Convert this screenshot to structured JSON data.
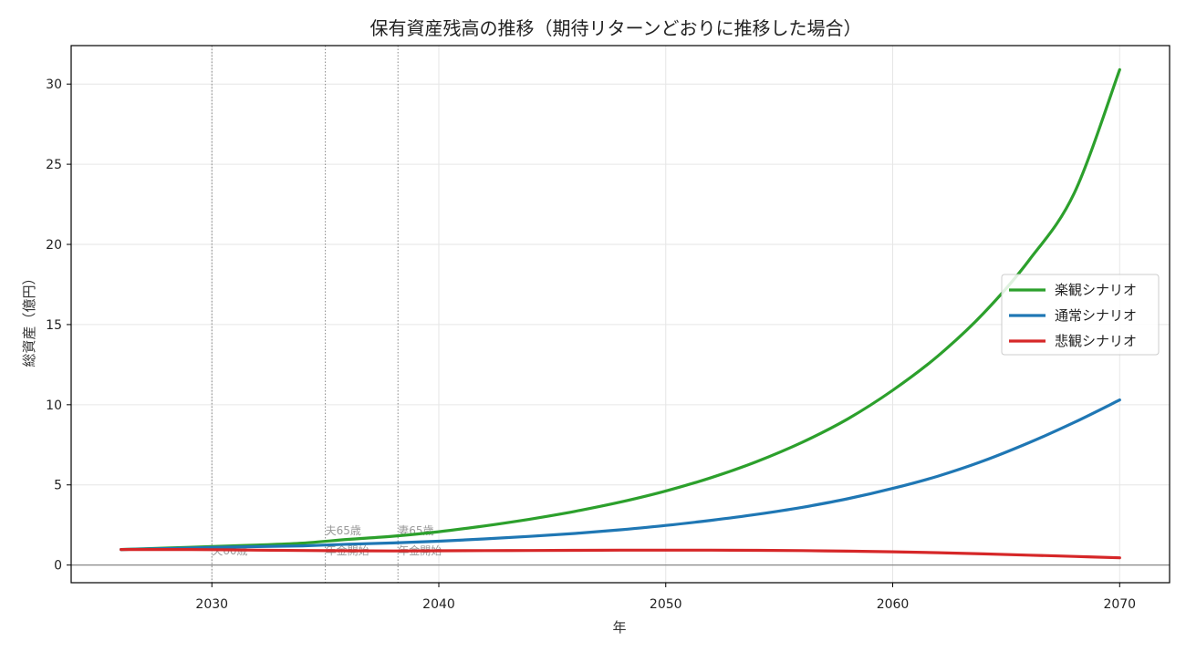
{
  "chart_data": {
    "type": "line",
    "title": "保有資産残高の推移（期待リターンどおりに推移した場合）",
    "xlabel": "年",
    "ylabel": "総資産（億円）",
    "xlim": [
      2023.8,
      2072.2
    ],
    "ylim": [
      -1.1,
      32.4
    ],
    "xticks": [
      2030,
      2040,
      2050,
      2060,
      2070
    ],
    "yticks": [
      0,
      5,
      10,
      15,
      20,
      25,
      30
    ],
    "grid": true,
    "zero_line": 0,
    "legend_position": "center-right",
    "x": [
      2026,
      2028,
      2030,
      2032,
      2034,
      2036,
      2038,
      2040,
      2042,
      2044,
      2046,
      2048,
      2050,
      2052,
      2054,
      2056,
      2058,
      2060,
      2062,
      2064,
      2066,
      2068,
      2070
    ],
    "series": [
      {
        "name": "楽観シナリオ",
        "color": "#2ca02c",
        "values": [
          0.97,
          1.06,
          1.15,
          1.25,
          1.37,
          1.6,
          1.8,
          2.08,
          2.44,
          2.86,
          3.35,
          3.93,
          4.62,
          5.45,
          6.45,
          7.65,
          9.1,
          10.9,
          13.05,
          15.7,
          19.0,
          23.2,
          30.9
        ]
      },
      {
        "name": "通常シナリオ",
        "color": "#1f77b4",
        "values": [
          0.97,
          1.03,
          1.1,
          1.15,
          1.2,
          1.3,
          1.38,
          1.49,
          1.63,
          1.79,
          1.97,
          2.2,
          2.47,
          2.79,
          3.16,
          3.6,
          4.13,
          4.78,
          5.55,
          6.5,
          7.63,
          8.9,
          10.3
        ]
      },
      {
        "name": "悲観シナリオ",
        "color": "#d62728",
        "values": [
          0.97,
          0.97,
          0.96,
          0.93,
          0.91,
          0.89,
          0.88,
          0.89,
          0.9,
          0.91,
          0.92,
          0.93,
          0.93,
          0.93,
          0.92,
          0.9,
          0.87,
          0.83,
          0.77,
          0.7,
          0.62,
          0.54,
          0.45
        ]
      }
    ],
    "events": [
      {
        "x": 2030,
        "label": "夫60歳"
      },
      {
        "x": 2035,
        "label": "夫65歳",
        "label2": "年金開始"
      },
      {
        "x": 2038.2,
        "label": "妻65歳",
        "label2": "年金開始"
      }
    ]
  }
}
